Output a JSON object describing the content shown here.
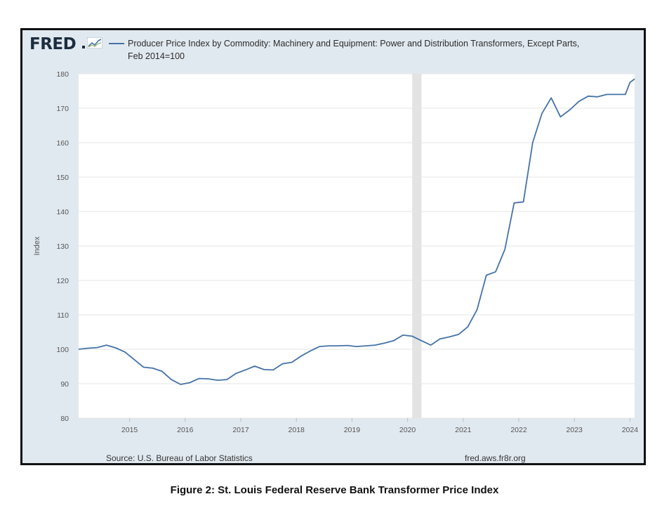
{
  "logo": {
    "text": "FRED",
    "icon": "fred-graph-icon"
  },
  "legend": {
    "line1": "Producer Price Index by Commodity: Machinery and Equipment: Power and Distribution Transformers, Except Parts,",
    "line2": "Feb 2014=100"
  },
  "source": "Source: U.S. Bureau of Labor Statistics",
  "site": "fred.aws.fr8r.org",
  "caption": "Figure 2: St. Louis Federal Reserve Bank Transformer Price Index",
  "colors": {
    "line": "#4572a7",
    "plot_bg": "#ffffff",
    "frame_bg": "#e1e9f0",
    "recession": "#e3e3e3",
    "grid": "#e6e6e6"
  },
  "chart_data": {
    "type": "line",
    "ylabel": "Index",
    "ylim": [
      80,
      180
    ],
    "yticks": [
      80,
      90,
      100,
      110,
      120,
      130,
      140,
      150,
      160,
      170,
      180
    ],
    "xlim": [
      "2014-02",
      "2024-02"
    ],
    "xticks": [
      "2015",
      "2016",
      "2017",
      "2018",
      "2019",
      "2020",
      "2021",
      "2022",
      "2023",
      "2024"
    ],
    "grid": true,
    "recession_band": [
      "2020-02",
      "2020-04"
    ],
    "series": [
      {
        "x": [
          "2014-02",
          "2014-04",
          "2014-06",
          "2014-08",
          "2014-10",
          "2014-12",
          "2015-02",
          "2015-04",
          "2015-06",
          "2015-08",
          "2015-10",
          "2015-12",
          "2016-02",
          "2016-04",
          "2016-06",
          "2016-08",
          "2016-10",
          "2016-12",
          "2017-02",
          "2017-04",
          "2017-06",
          "2017-08",
          "2017-10",
          "2017-12",
          "2018-02",
          "2018-04",
          "2018-06",
          "2018-08",
          "2018-10",
          "2018-12",
          "2019-02",
          "2019-04",
          "2019-06",
          "2019-08",
          "2019-10",
          "2019-12",
          "2020-02",
          "2020-04",
          "2020-06",
          "2020-08",
          "2020-10",
          "2020-12",
          "2021-02",
          "2021-04",
          "2021-06",
          "2021-08",
          "2021-10",
          "2021-12",
          "2022-02",
          "2022-04",
          "2022-06",
          "2022-08",
          "2022-10",
          "2022-12",
          "2023-02",
          "2023-04",
          "2023-06",
          "2023-08",
          "2023-10",
          "2023-12",
          "2024-01",
          "2024-02"
        ],
        "values": [
          100.0,
          100.3,
          100.5,
          101.2,
          100.4,
          99.2,
          97.0,
          94.8,
          94.5,
          93.6,
          91.2,
          89.8,
          90.3,
          91.5,
          91.4,
          91.0,
          91.2,
          93.0,
          94.0,
          95.1,
          94.1,
          94.0,
          95.8,
          96.2,
          98.0,
          99.5,
          100.8,
          101.0,
          101.0,
          101.1,
          100.8,
          101.0,
          101.2,
          101.8,
          102.5,
          104.1,
          103.8,
          102.5,
          101.2,
          103.0,
          103.6,
          104.3,
          106.5,
          111.5,
          121.5,
          122.5,
          129.0,
          142.5,
          142.8,
          160.0,
          168.5,
          173.0,
          167.5,
          169.5,
          172.0,
          173.5,
          173.3,
          174.0,
          174.0,
          174.0,
          177.5,
          178.5
        ]
      }
    ]
  }
}
